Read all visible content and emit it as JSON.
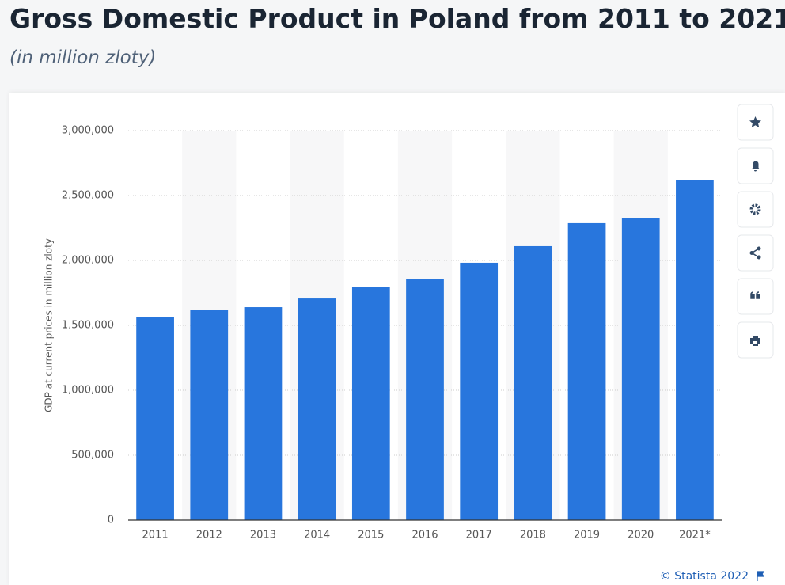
{
  "chart_data": {
    "type": "bar",
    "title": "Gross Domestic Product in Poland from 2011 to 2021",
    "subtitle": "(in million zloty)",
    "y_label": "GDP at current prices in million zloty",
    "categories": [
      "2011",
      "2012",
      "2013",
      "2014",
      "2015",
      "2016",
      "2017",
      "2018",
      "2019",
      "2020",
      "2021*"
    ],
    "values": [
      1561000,
      1616000,
      1640000,
      1707000,
      1793000,
      1854000,
      1982000,
      2110000,
      2287000,
      2329000,
      2616000
    ],
    "color": "#2876dd",
    "ylim": [
      0,
      3000000
    ],
    "yticks": [
      0,
      {
        "value": 500000,
        "label": "500,000"
      },
      {
        "value": 1000000,
        "label": "1,000,000"
      },
      {
        "value": 1500000,
        "label": "1,500,000"
      },
      {
        "value": 2000000,
        "label": "2,000,000"
      },
      {
        "value": 2500000,
        "label": "2,500,000"
      },
      {
        "value": 3000000,
        "label": "3,000,000"
      }
    ],
    "grid": true,
    "source": "© Statista 2022"
  }
}
